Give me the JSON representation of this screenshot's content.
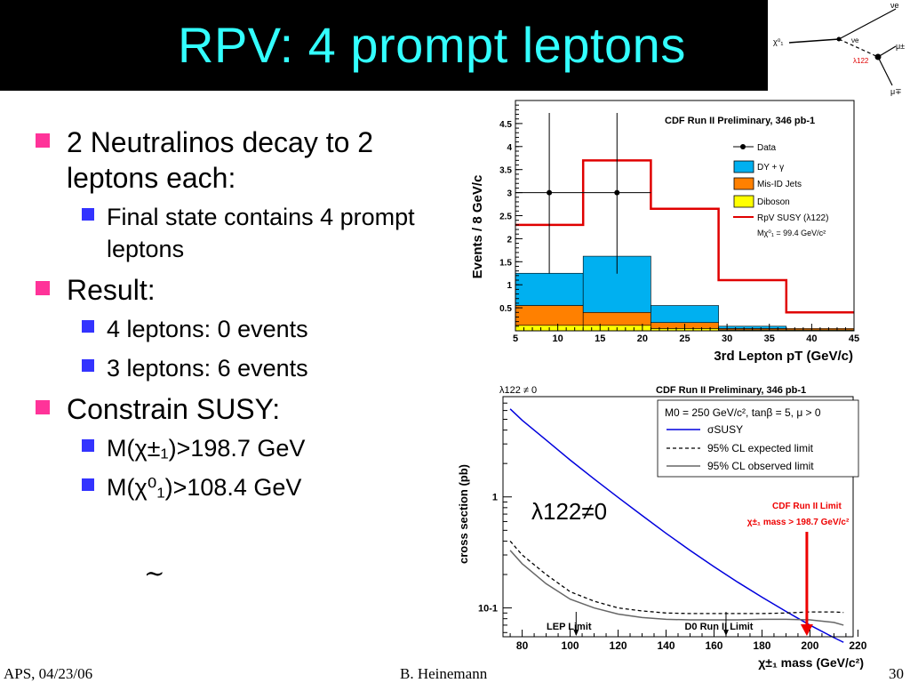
{
  "slide": {
    "title": "RPV: 4 prompt leptons",
    "bullets": [
      {
        "text": "2 Neutralinos decay to 2 leptons each:",
        "sub": [
          "Final state contains 4 prompt leptons"
        ]
      },
      {
        "text": "Result:",
        "sub": [
          "4 leptons: 0 events",
          "3 leptons: 6 events"
        ]
      },
      {
        "text": "Constrain SUSY:",
        "sub": [
          "M(χ±₁)>198.7 GeV",
          "M(χ⁰₁)>108.4 GeV"
        ]
      }
    ],
    "tilde": "~",
    "footer_left": "APS, 04/23/06",
    "footer_center": "B. Heinemann",
    "footer_right": "30"
  },
  "feynman": {
    "labels": [
      "νe",
      "χ⁰₁",
      "νe",
      "λ122",
      "μ±",
      "μ∓"
    ]
  },
  "colors": {
    "title_bg": "#000000",
    "title_text": "#33ffff",
    "bullet_l1": "#ff3399",
    "bullet_l2": "#3333ff",
    "dy": "#00b0f0",
    "misid": "#ff8000",
    "diboson": "#ffff00",
    "rpv": "#e00000",
    "sigma": "#0000dd",
    "limit_marker": "#ee0000"
  },
  "chart_data": [
    {
      "type": "bar",
      "title": "CDF Run II Preliminary, 346 pb-1",
      "xlabel": "3rd Lepton pT (GeV/c)",
      "ylabel": "Events / 8 GeV/c",
      "xlim": [
        5,
        45
      ],
      "ylim": [
        0,
        5
      ],
      "xticks": [
        5,
        10,
        15,
        20,
        25,
        30,
        35,
        40,
        45
      ],
      "yticks": [
        0.5,
        1,
        1.5,
        2,
        2.5,
        3,
        3.5,
        4,
        4.5
      ],
      "bins": [
        5,
        13,
        21,
        29,
        37,
        45
      ],
      "stack": [
        {
          "name": "Diboson",
          "values": [
            0.12,
            0.12,
            0.05,
            0.02,
            0.02
          ]
        },
        {
          "name": "Mis-ID Jets",
          "values": [
            0.43,
            0.28,
            0.13,
            0.03,
            0.03
          ]
        },
        {
          "name": "DY + γ",
          "values": [
            0.7,
            1.22,
            0.37,
            0.05,
            0.0
          ]
        }
      ],
      "rpv_susy": {
        "name": "RpV SUSY (λ122)",
        "values": [
          2.3,
          3.7,
          2.65,
          1.1,
          0.4
        ],
        "mass_label": "Mχ⁰₁ = 99.4 GeV/c²"
      },
      "data": {
        "name": "Data",
        "x": [
          9,
          17
        ],
        "y": [
          3,
          3
        ],
        "err_low": [
          1.76,
          1.76
        ],
        "err_high": [
          1.73,
          1.73
        ]
      },
      "legend": [
        "Data",
        "DY + γ",
        "Mis-ID Jets",
        "Diboson",
        "RpV SUSY (λ122)",
        "Mχ⁰₁ = 99.4 GeV/c²"
      ],
      "legend_position": "top-right"
    },
    {
      "type": "line",
      "title": "CDF Run II Preliminary, 346 pb-1",
      "corner_label": "λ122 ≠ 0",
      "xlabel": "χ±₁ mass (GeV/c²)",
      "ylabel": "cross section (pb)",
      "xlim": [
        72,
        218
      ],
      "ylim": [
        0.055,
        8
      ],
      "yscale": "log",
      "xticks": [
        80,
        100,
        120,
        140,
        160,
        180,
        200,
        220
      ],
      "yticks": [
        {
          "v": 0.1,
          "label": "10-1"
        },
        {
          "v": 1,
          "label": "1"
        }
      ],
      "params": "M0 = 250 GeV/c², tanβ = 5, μ > 0",
      "series": [
        {
          "name": "σSUSY",
          "x": [
            75,
            80,
            90,
            100,
            110,
            120,
            130,
            140,
            150,
            160,
            170,
            180,
            190,
            200,
            210,
            214
          ],
          "y": [
            6.2,
            4.9,
            3.25,
            2.15,
            1.45,
            0.99,
            0.68,
            0.47,
            0.33,
            0.235,
            0.17,
            0.125,
            0.093,
            0.07,
            0.054,
            0.049
          ]
        },
        {
          "name": "95% CL expected limit",
          "x": [
            75,
            80,
            90,
            100,
            110,
            120,
            130,
            140,
            150,
            160,
            170,
            180,
            190,
            200,
            210,
            214
          ],
          "y": [
            0.4,
            0.3,
            0.2,
            0.14,
            0.115,
            0.1,
            0.094,
            0.09,
            0.089,
            0.089,
            0.089,
            0.089,
            0.09,
            0.092,
            0.092,
            0.091
          ]
        },
        {
          "name": "95% CL observed limit",
          "x": [
            75,
            80,
            90,
            100,
            110,
            120,
            130,
            140,
            150,
            160,
            170,
            180,
            190,
            200,
            210,
            214
          ],
          "y": [
            0.33,
            0.25,
            0.165,
            0.12,
            0.1,
            0.088,
            0.082,
            0.079,
            0.078,
            0.078,
            0.078,
            0.079,
            0.079,
            0.078,
            0.074,
            0.07
          ]
        }
      ],
      "annotations": [
        {
          "text": "LEP Limit",
          "x": 102.5
        },
        {
          "text": "D0 Run II Limit",
          "x": 165
        },
        {
          "text": "CDF Run II Limit",
          "x": 198.7,
          "line2": "χ±₁ mass > 198.7 GeV/c²"
        }
      ],
      "overlay_text": "λ122≠0",
      "legend_position": "top-right"
    }
  ]
}
